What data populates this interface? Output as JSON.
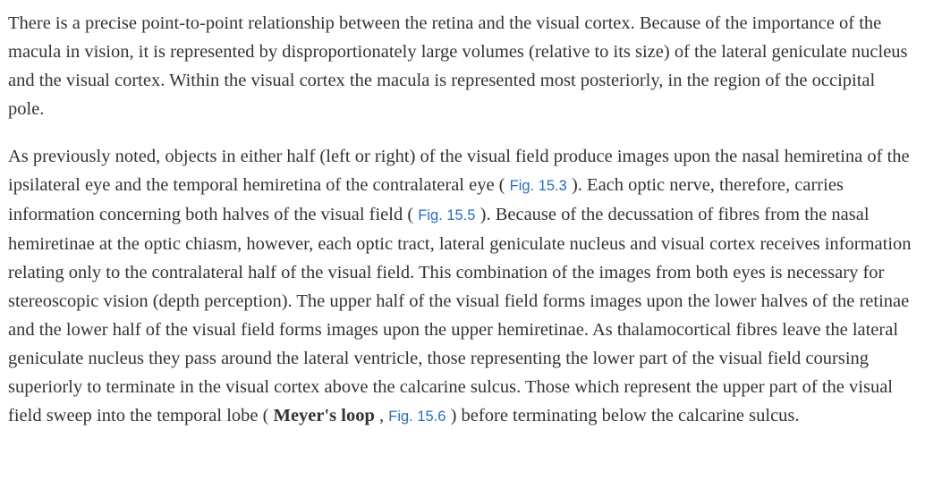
{
  "paragraph1": "There is a precise point-to-point relationship between the retina and the visual cortex. Because of the importance of the macula in vision, it is represented by disproportionately large volumes (relative to its size) of the lateral geniculate nucleus and the visual cortex. Within the visual cortex the macula is represented most posteriorly, in the region of the occipital pole.",
  "paragraph2": {
    "seg1": "As previously noted, objects in either half (left or right) of the visual field produce images upon the nasal hemiretina of the ipsilateral eye and the temporal hemiretina of the contralateral eye ( ",
    "fig1": "Fig. 15.3",
    "seg2": " ). Each optic nerve, therefore, carries information concerning both halves of the visual field ( ",
    "fig2": "Fig. 15.5",
    "seg3": " ). Because of the decussation of fibres from the nasal hemiretinae at the optic chiasm, however, each optic tract, lateral geniculate nucleus and visual cortex receives information relating only to the contralateral half of the visual field. This combination of the images from both eyes is necessary for stereoscopic vision (depth perception). The upper half of the visual field forms images upon the lower halves of the retinae and the lower half of the visual field forms images upon the upper hemiretinae. As thalamocortical fibres leave the lateral geniculate nucleus they pass around the lateral ventricle, those representing the lower part of the visual field coursing superiorly to terminate in the visual cortex above the calcarine sulcus. Those which represent the upper part of the visual field sweep into the temporal lobe ( ",
    "term": "Meyer's loop",
    "seg4": " , ",
    "fig3": "Fig. 15.6",
    "seg5": " ) before terminating below the calcarine sulcus."
  },
  "colors": {
    "text": "#333333",
    "link": "#2a6ebb",
    "background": "#ffffff"
  }
}
